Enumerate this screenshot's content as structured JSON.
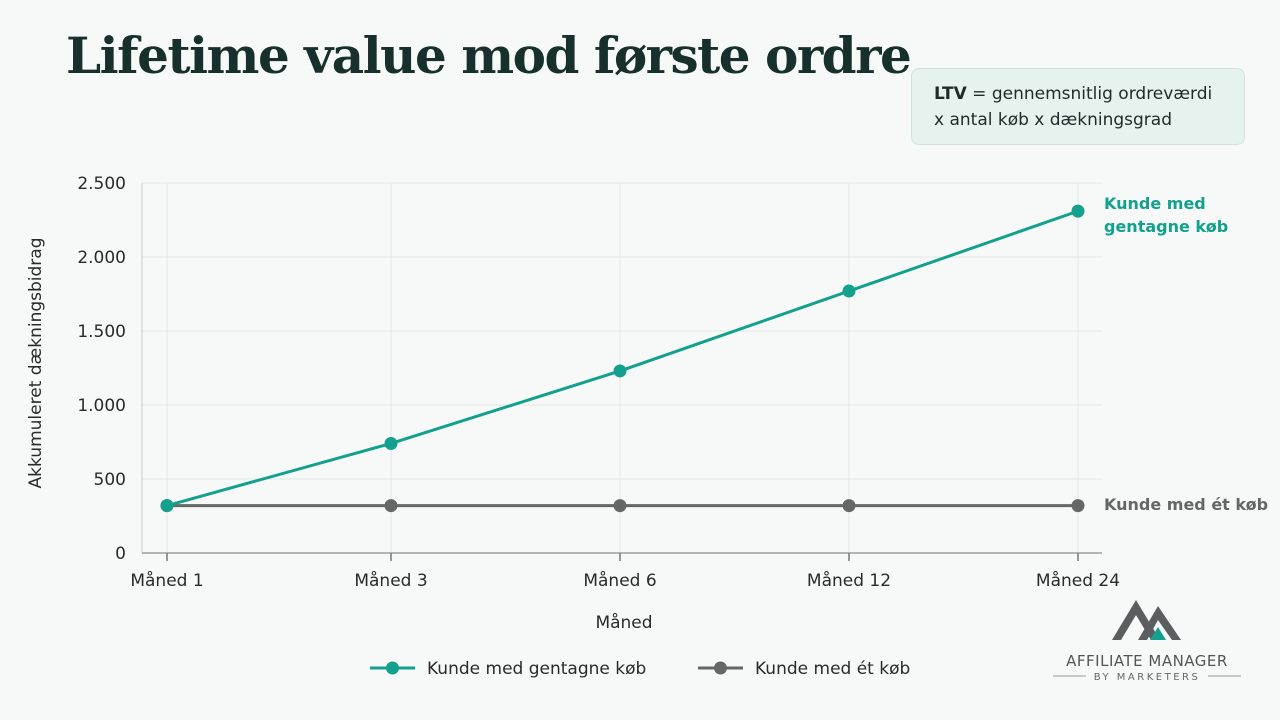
{
  "title": "Lifetime value mod første ordre",
  "formula": {
    "term": "LTV",
    "line1_rest": " = gennemsnitlig ordreværdi",
    "line2": "x antal køb x dækningsgrad"
  },
  "logo": {
    "name": "AFFILIATE MANAGER",
    "sub": "BY MARKETERS"
  },
  "chart_data": {
    "type": "line",
    "categories": [
      "Måned 1",
      "Måned 3",
      "Måned 6",
      "Måned 12",
      "Måned 24"
    ],
    "xlabel": "Måned",
    "ylabel": "Akkumuleret dækningsbidrag",
    "ylim": [
      0,
      2500
    ],
    "yticks": [
      0,
      500,
      1000,
      1500,
      2000,
      2500
    ],
    "ytick_labels": [
      "0",
      "500",
      "1.000",
      "1.500",
      "2.000",
      "2.500"
    ],
    "grid": true,
    "legend_position": "bottom",
    "series": [
      {
        "name": "Kunde med gentagne køb",
        "end_label": [
          "Kunde med",
          "gentagne køb"
        ],
        "color": "#13a18e",
        "values": [
          320,
          740,
          1230,
          1770,
          2310
        ]
      },
      {
        "name": "Kunde med ét køb",
        "end_label": [
          "Kunde med ét køb"
        ],
        "color": "#666666",
        "values": [
          320,
          320,
          320,
          320,
          320
        ]
      }
    ]
  }
}
